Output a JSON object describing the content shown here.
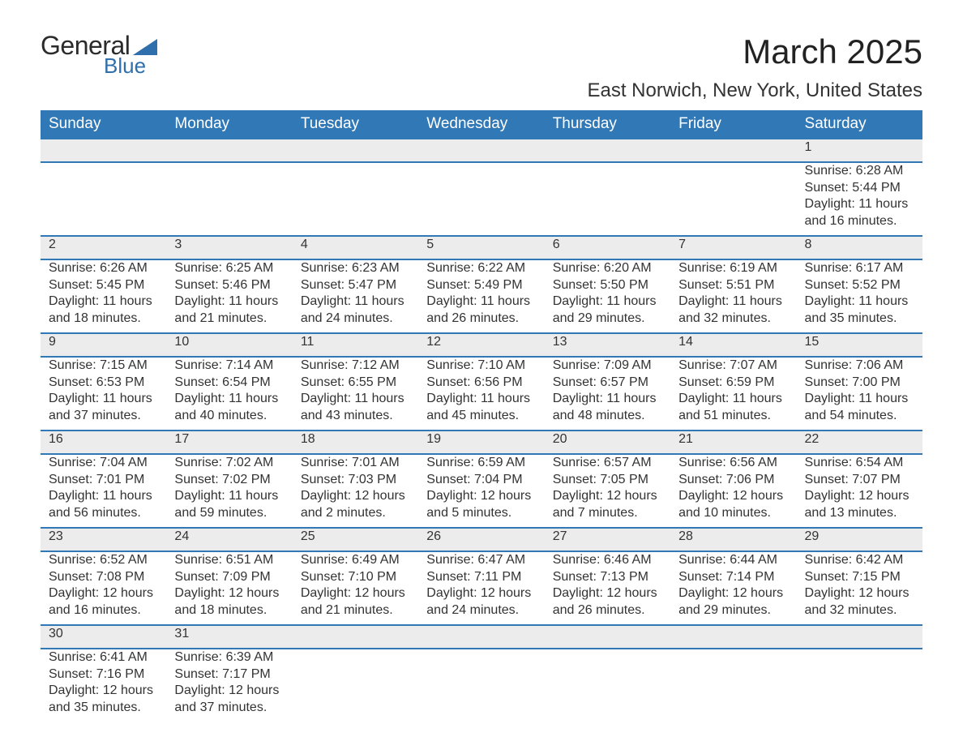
{
  "brand": {
    "word1": "General",
    "word2": "Blue",
    "tri_color": "#2f6fab"
  },
  "title": "March 2025",
  "location": "East Norwich, New York, United States",
  "colors": {
    "header_bg": "#3178b7",
    "header_text": "#ffffff",
    "daynum_bg": "#ececec",
    "row_divider": "#3178b7",
    "body_text": "#333333",
    "page_bg": "#ffffff"
  },
  "typography": {
    "month_title_fontsize": 42,
    "location_fontsize": 24,
    "weekday_fontsize": 19,
    "daynum_fontsize": 19,
    "cell_fontsize": 16
  },
  "layout": {
    "columns": 7,
    "rows": 6
  },
  "weekdays": [
    "Sunday",
    "Monday",
    "Tuesday",
    "Wednesday",
    "Thursday",
    "Friday",
    "Saturday"
  ],
  "weeks": [
    [
      null,
      null,
      null,
      null,
      null,
      null,
      {
        "d": "1",
        "sunrise": "6:28 AM",
        "sunset": "5:44 PM",
        "daylight": "11 hours and 16 minutes."
      }
    ],
    [
      {
        "d": "2",
        "sunrise": "6:26 AM",
        "sunset": "5:45 PM",
        "daylight": "11 hours and 18 minutes."
      },
      {
        "d": "3",
        "sunrise": "6:25 AM",
        "sunset": "5:46 PM",
        "daylight": "11 hours and 21 minutes."
      },
      {
        "d": "4",
        "sunrise": "6:23 AM",
        "sunset": "5:47 PM",
        "daylight": "11 hours and 24 minutes."
      },
      {
        "d": "5",
        "sunrise": "6:22 AM",
        "sunset": "5:49 PM",
        "daylight": "11 hours and 26 minutes."
      },
      {
        "d": "6",
        "sunrise": "6:20 AM",
        "sunset": "5:50 PM",
        "daylight": "11 hours and 29 minutes."
      },
      {
        "d": "7",
        "sunrise": "6:19 AM",
        "sunset": "5:51 PM",
        "daylight": "11 hours and 32 minutes."
      },
      {
        "d": "8",
        "sunrise": "6:17 AM",
        "sunset": "5:52 PM",
        "daylight": "11 hours and 35 minutes."
      }
    ],
    [
      {
        "d": "9",
        "sunrise": "7:15 AM",
        "sunset": "6:53 PM",
        "daylight": "11 hours and 37 minutes."
      },
      {
        "d": "10",
        "sunrise": "7:14 AM",
        "sunset": "6:54 PM",
        "daylight": "11 hours and 40 minutes."
      },
      {
        "d": "11",
        "sunrise": "7:12 AM",
        "sunset": "6:55 PM",
        "daylight": "11 hours and 43 minutes."
      },
      {
        "d": "12",
        "sunrise": "7:10 AM",
        "sunset": "6:56 PM",
        "daylight": "11 hours and 45 minutes."
      },
      {
        "d": "13",
        "sunrise": "7:09 AM",
        "sunset": "6:57 PM",
        "daylight": "11 hours and 48 minutes."
      },
      {
        "d": "14",
        "sunrise": "7:07 AM",
        "sunset": "6:59 PM",
        "daylight": "11 hours and 51 minutes."
      },
      {
        "d": "15",
        "sunrise": "7:06 AM",
        "sunset": "7:00 PM",
        "daylight": "11 hours and 54 minutes."
      }
    ],
    [
      {
        "d": "16",
        "sunrise": "7:04 AM",
        "sunset": "7:01 PM",
        "daylight": "11 hours and 56 minutes."
      },
      {
        "d": "17",
        "sunrise": "7:02 AM",
        "sunset": "7:02 PM",
        "daylight": "11 hours and 59 minutes."
      },
      {
        "d": "18",
        "sunrise": "7:01 AM",
        "sunset": "7:03 PM",
        "daylight": "12 hours and 2 minutes."
      },
      {
        "d": "19",
        "sunrise": "6:59 AM",
        "sunset": "7:04 PM",
        "daylight": "12 hours and 5 minutes."
      },
      {
        "d": "20",
        "sunrise": "6:57 AM",
        "sunset": "7:05 PM",
        "daylight": "12 hours and 7 minutes."
      },
      {
        "d": "21",
        "sunrise": "6:56 AM",
        "sunset": "7:06 PM",
        "daylight": "12 hours and 10 minutes."
      },
      {
        "d": "22",
        "sunrise": "6:54 AM",
        "sunset": "7:07 PM",
        "daylight": "12 hours and 13 minutes."
      }
    ],
    [
      {
        "d": "23",
        "sunrise": "6:52 AM",
        "sunset": "7:08 PM",
        "daylight": "12 hours and 16 minutes."
      },
      {
        "d": "24",
        "sunrise": "6:51 AM",
        "sunset": "7:09 PM",
        "daylight": "12 hours and 18 minutes."
      },
      {
        "d": "25",
        "sunrise": "6:49 AM",
        "sunset": "7:10 PM",
        "daylight": "12 hours and 21 minutes."
      },
      {
        "d": "26",
        "sunrise": "6:47 AM",
        "sunset": "7:11 PM",
        "daylight": "12 hours and 24 minutes."
      },
      {
        "d": "27",
        "sunrise": "6:46 AM",
        "sunset": "7:13 PM",
        "daylight": "12 hours and 26 minutes."
      },
      {
        "d": "28",
        "sunrise": "6:44 AM",
        "sunset": "7:14 PM",
        "daylight": "12 hours and 29 minutes."
      },
      {
        "d": "29",
        "sunrise": "6:42 AM",
        "sunset": "7:15 PM",
        "daylight": "12 hours and 32 minutes."
      }
    ],
    [
      {
        "d": "30",
        "sunrise": "6:41 AM",
        "sunset": "7:16 PM",
        "daylight": "12 hours and 35 minutes."
      },
      {
        "d": "31",
        "sunrise": "6:39 AM",
        "sunset": "7:17 PM",
        "daylight": "12 hours and 37 minutes."
      },
      null,
      null,
      null,
      null,
      null
    ]
  ],
  "labels": {
    "sunrise": "Sunrise: ",
    "sunset": "Sunset: ",
    "daylight": "Daylight: "
  }
}
